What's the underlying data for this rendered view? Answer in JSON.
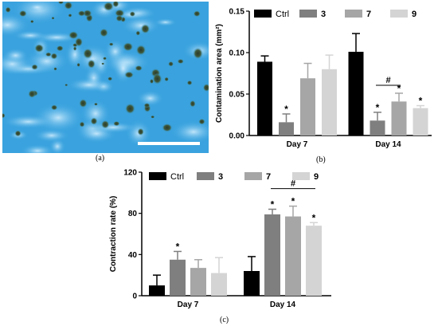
{
  "panels": {
    "a": {
      "label": "(a)"
    },
    "b": {
      "label": "(b)"
    },
    "c": {
      "label": "(c)"
    }
  },
  "colors": {
    "ctrl": "#000000",
    "g3": "#7f7f7f",
    "g7": "#a6a6a6",
    "g9": "#d4d4d4",
    "micrograph_bg": "#3fa9e3",
    "scale_bar": "#ffffff"
  },
  "chart_data": [
    {
      "id": "b",
      "type": "bar",
      "ylabel": "Contamination area (mm²)",
      "ylim": [
        0,
        0.15
      ],
      "yticks": [
        "0.00",
        "0.05",
        "0.10",
        "0.15"
      ],
      "categories": [
        "Day 7",
        "Day 14"
      ],
      "legend": [
        "Ctrl",
        "3",
        "7",
        "9"
      ],
      "series": [
        {
          "name": "Ctrl",
          "values": [
            0.089,
            0.101
          ],
          "errors": [
            0.007,
            0.022
          ],
          "marks": [
            "",
            ""
          ]
        },
        {
          "name": "3",
          "values": [
            0.016,
            0.018
          ],
          "errors": [
            0.01,
            0.01
          ],
          "marks": [
            "*",
            "*"
          ]
        },
        {
          "name": "7",
          "values": [
            0.069,
            0.041
          ],
          "errors": [
            0.018,
            0.01
          ],
          "marks": [
            "",
            "*"
          ]
        },
        {
          "name": "9",
          "values": [
            0.08,
            0.033
          ],
          "errors": [
            0.017,
            0.003
          ],
          "marks": [
            "",
            "*"
          ]
        }
      ],
      "annotations": [
        {
          "text": "#",
          "category": 1,
          "from_series": 1,
          "to_series": 2
        }
      ]
    },
    {
      "id": "c",
      "type": "bar",
      "ylabel": "Contraction rate (%)",
      "ylim": [
        0,
        120
      ],
      "yticks": [
        "0",
        "40",
        "80",
        "120"
      ],
      "categories": [
        "Day 7",
        "Day 14"
      ],
      "legend": [
        "Ctrl",
        "3",
        "7",
        "9"
      ],
      "series": [
        {
          "name": "Ctrl",
          "values": [
            10,
            24
          ],
          "errors": [
            10,
            14
          ],
          "marks": [
            "",
            ""
          ]
        },
        {
          "name": "3",
          "values": [
            35,
            79
          ],
          "errors": [
            8,
            5
          ],
          "marks": [
            "*",
            "*"
          ]
        },
        {
          "name": "7",
          "values": [
            27,
            77
          ],
          "errors": [
            8,
            10
          ],
          "marks": [
            "",
            "*"
          ]
        },
        {
          "name": "9",
          "values": [
            22,
            68
          ],
          "errors": [
            15,
            3
          ],
          "marks": [
            "",
            "*"
          ]
        }
      ],
      "annotations": [
        {
          "text": "#",
          "category": 1,
          "from_series": 1,
          "to_series": 3
        }
      ]
    }
  ]
}
